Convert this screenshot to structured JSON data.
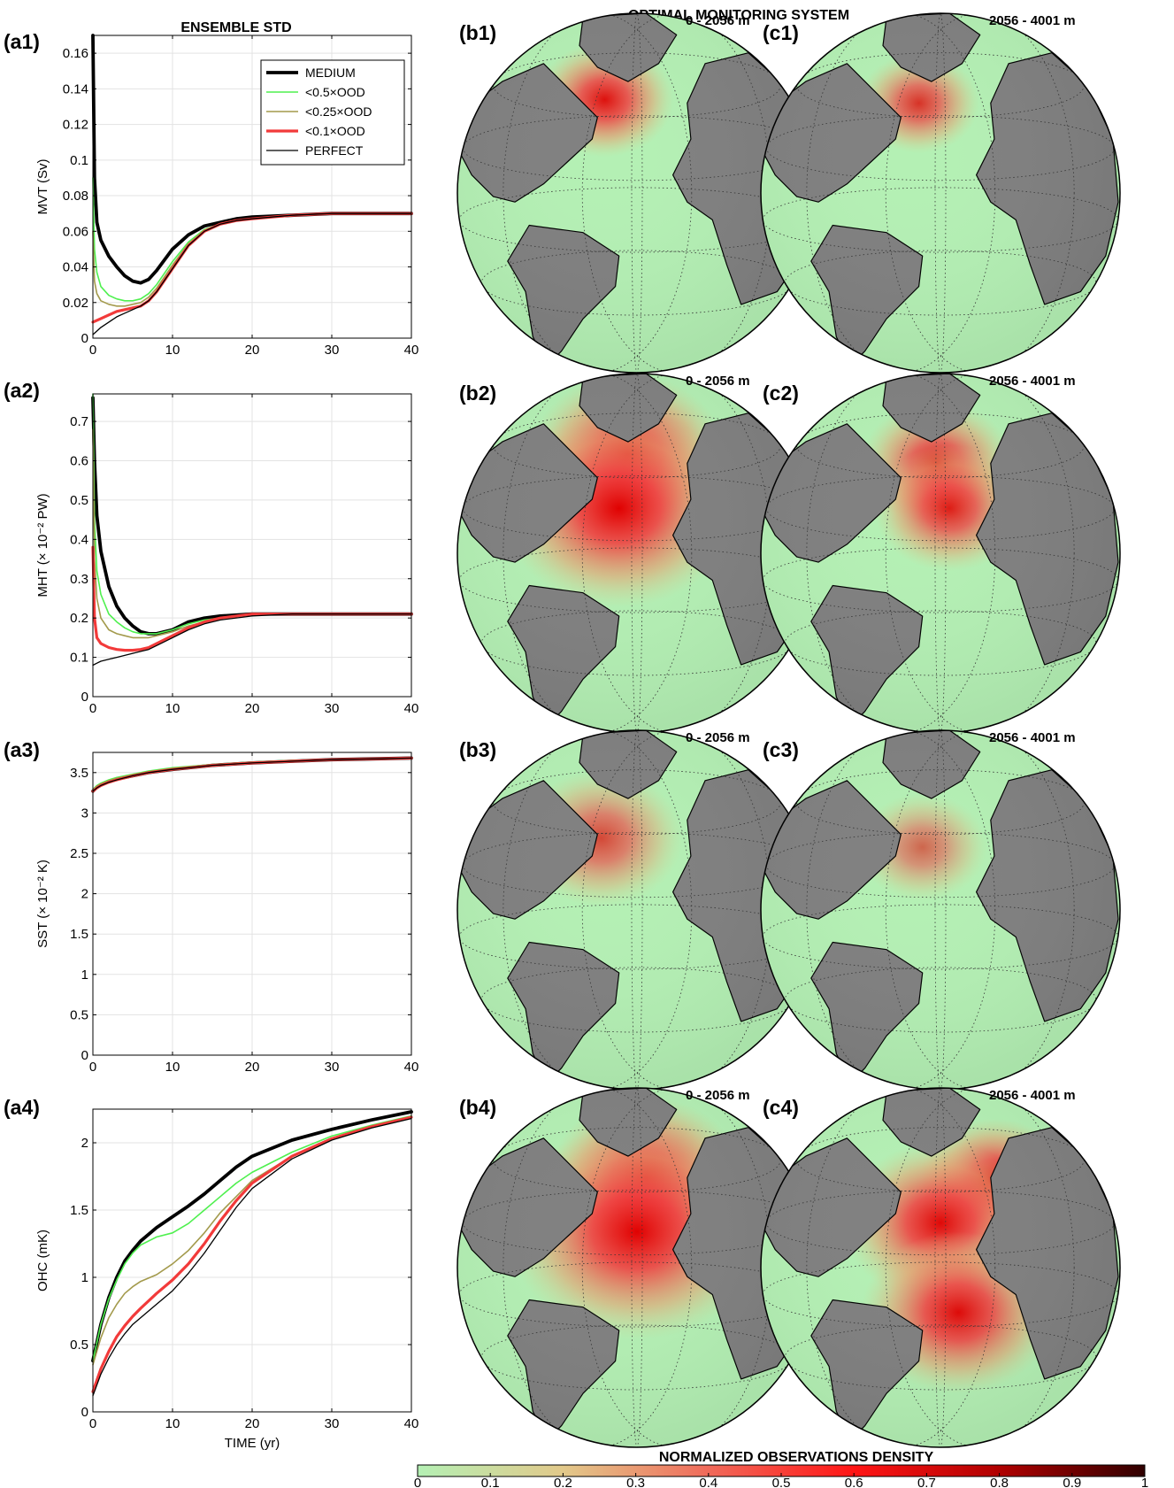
{
  "figure": {
    "left_title": "ENSEMBLE STD",
    "right_title": "OPTIMAL MONITORING SYSTEM",
    "colorbar_title": "NORMALIZED OBSERVATIONS DENSITY",
    "colorbar_ticks": [
      "0",
      "0.1",
      "0.2",
      "0.3",
      "0.4",
      "0.5",
      "0.6",
      "0.7",
      "0.8",
      "0.9",
      "1"
    ],
    "colors": {
      "medium": "#000000",
      "half_ood": "#4ff04f",
      "quarter_ood": "#a39a4c",
      "tenth_ood": "#f23a3a",
      "perfect": "#000000",
      "ocean_low": "#b4f0b4",
      "land": "#808080",
      "ice": "#ffffff"
    }
  },
  "maps": [
    {
      "label": "(b1)",
      "depth": "0 - 2056 m",
      "icon": "globe-icon",
      "intensity": 0.9
    },
    {
      "label": "(c1)",
      "depth": "2056 - 4001 m",
      "icon": "globe-icon",
      "intensity": 0.7
    },
    {
      "label": "(b2)",
      "depth": "0 - 2056 m",
      "icon": "globe-icon",
      "intensity": 1.0
    },
    {
      "label": "(c2)",
      "depth": "2056 - 4001 m",
      "icon": "globe-icon",
      "intensity": 0.8
    },
    {
      "label": "(b3)",
      "depth": "0 - 2056 m",
      "icon": "globe-icon",
      "intensity": 0.55
    },
    {
      "label": "(c3)",
      "depth": "2056 - 4001 m",
      "icon": "globe-icon",
      "intensity": 0.35
    },
    {
      "label": "(b4)",
      "depth": "0 - 2056 m",
      "icon": "globe-icon",
      "intensity": 1.0
    },
    {
      "label": "(c4)",
      "depth": "2056 - 4001 m",
      "icon": "globe-icon",
      "intensity": 0.95
    }
  ],
  "chart_data": [
    {
      "type": "line",
      "label": "(a1)",
      "ylabel": "MVT (Sv)",
      "xlabel": "",
      "xlim": [
        0,
        40
      ],
      "ylim": [
        0,
        0.17
      ],
      "yticks": [
        0,
        0.02,
        0.04,
        0.06,
        0.08,
        0.1,
        0.12,
        0.14,
        0.16
      ],
      "ytick_labels": [
        "0",
        "0.02",
        "0.04",
        "0.06",
        "0.08",
        "0.1",
        "0.12",
        "0.14",
        "0.16"
      ],
      "xticks": [
        0,
        10,
        20,
        30,
        40
      ],
      "xtick_labels": [
        "0",
        "10",
        "20",
        "30",
        "40"
      ],
      "grid": true,
      "legend_position": "top-right",
      "series": [
        {
          "name": "MEDIUM",
          "style": "thick-black",
          "x": [
            0,
            0.2,
            0.5,
            1,
            2,
            3,
            4,
            5,
            6,
            7,
            8,
            10,
            12,
            14,
            16,
            18,
            20,
            25,
            30,
            35,
            40
          ],
          "y": [
            0.17,
            0.09,
            0.065,
            0.055,
            0.046,
            0.04,
            0.035,
            0.032,
            0.031,
            0.033,
            0.038,
            0.05,
            0.058,
            0.063,
            0.065,
            0.067,
            0.068,
            0.069,
            0.07,
            0.07,
            0.07
          ]
        },
        {
          "name": "<0.5×OOD",
          "style": "green",
          "x": [
            0,
            0.2,
            0.5,
            1,
            2,
            3,
            4,
            5,
            6,
            7,
            8,
            10,
            12,
            14,
            16,
            18,
            20,
            25,
            30,
            35,
            40
          ],
          "y": [
            0.09,
            0.05,
            0.037,
            0.029,
            0.024,
            0.022,
            0.021,
            0.021,
            0.022,
            0.025,
            0.03,
            0.043,
            0.054,
            0.061,
            0.064,
            0.066,
            0.067,
            0.069,
            0.07,
            0.07,
            0.07
          ]
        },
        {
          "name": "<0.25×OOD",
          "style": "olive",
          "x": [
            0,
            0.2,
            0.5,
            1,
            2,
            3,
            4,
            5,
            6,
            7,
            8,
            10,
            12,
            14,
            16,
            18,
            20,
            25,
            30,
            35,
            40
          ],
          "y": [
            0.06,
            0.032,
            0.025,
            0.021,
            0.019,
            0.018,
            0.018,
            0.019,
            0.02,
            0.023,
            0.028,
            0.041,
            0.053,
            0.06,
            0.064,
            0.066,
            0.067,
            0.069,
            0.07,
            0.07,
            0.07
          ]
        },
        {
          "name": "<0.1×OOD",
          "style": "red",
          "x": [
            0,
            0.5,
            1,
            2,
            3,
            4,
            5,
            6,
            7,
            8,
            10,
            12,
            14,
            16,
            18,
            20,
            25,
            30,
            35,
            40
          ],
          "y": [
            0.009,
            0.01,
            0.011,
            0.013,
            0.015,
            0.016,
            0.017,
            0.018,
            0.021,
            0.026,
            0.039,
            0.052,
            0.06,
            0.064,
            0.066,
            0.067,
            0.069,
            0.07,
            0.07,
            0.07
          ]
        },
        {
          "name": "PERFECT",
          "style": "thin-black",
          "x": [
            0,
            0.5,
            1,
            2,
            3,
            4,
            5,
            6,
            7,
            8,
            10,
            12,
            14,
            16,
            18,
            20,
            25,
            30,
            35,
            40
          ],
          "y": [
            0.002,
            0.004,
            0.006,
            0.009,
            0.012,
            0.014,
            0.016,
            0.018,
            0.021,
            0.026,
            0.039,
            0.052,
            0.06,
            0.064,
            0.066,
            0.067,
            0.069,
            0.07,
            0.07,
            0.07
          ]
        }
      ]
    },
    {
      "type": "line",
      "label": "(a2)",
      "ylabel": "MHT (× 10⁻² PW)",
      "xlabel": "",
      "xlim": [
        0,
        40
      ],
      "ylim": [
        0,
        0.77
      ],
      "yticks": [
        0,
        0.1,
        0.2,
        0.3,
        0.4,
        0.5,
        0.6,
        0.7
      ],
      "ytick_labels": [
        "0",
        "0.1",
        "0.2",
        "0.3",
        "0.4",
        "0.5",
        "0.6",
        "0.7"
      ],
      "xticks": [
        0,
        10,
        20,
        30,
        40
      ],
      "xtick_labels": [
        "0",
        "10",
        "20",
        "30",
        "40"
      ],
      "grid": true,
      "series": [
        {
          "name": "MEDIUM",
          "style": "thick-black",
          "x": [
            0,
            0.2,
            0.5,
            1,
            2,
            3,
            4,
            5,
            6,
            7,
            8,
            10,
            12,
            14,
            16,
            20,
            25,
            30,
            40
          ],
          "y": [
            0.76,
            0.6,
            0.46,
            0.37,
            0.28,
            0.23,
            0.2,
            0.18,
            0.165,
            0.16,
            0.16,
            0.17,
            0.19,
            0.2,
            0.205,
            0.21,
            0.21,
            0.21,
            0.21
          ]
        },
        {
          "name": "<0.5×OOD",
          "style": "green",
          "x": [
            0,
            0.2,
            0.5,
            1,
            2,
            3,
            4,
            5,
            6,
            7,
            8,
            10,
            12,
            14,
            16,
            20,
            25,
            30,
            40
          ],
          "y": [
            0.77,
            0.45,
            0.32,
            0.26,
            0.21,
            0.19,
            0.175,
            0.165,
            0.16,
            0.16,
            0.16,
            0.17,
            0.185,
            0.195,
            0.2,
            0.21,
            0.21,
            0.21,
            0.21
          ]
        },
        {
          "name": "<0.25×OOD",
          "style": "olive",
          "x": [
            0,
            0.2,
            0.5,
            1,
            2,
            3,
            4,
            5,
            6,
            7,
            8,
            10,
            12,
            14,
            16,
            20,
            25,
            30,
            40
          ],
          "y": [
            0.68,
            0.35,
            0.25,
            0.2,
            0.17,
            0.16,
            0.155,
            0.15,
            0.15,
            0.15,
            0.155,
            0.165,
            0.18,
            0.19,
            0.2,
            0.21,
            0.21,
            0.21,
            0.21
          ]
        },
        {
          "name": "<0.1×OOD",
          "style": "red",
          "x": [
            0,
            0.2,
            0.5,
            1,
            2,
            3,
            4,
            5,
            6,
            7,
            8,
            10,
            12,
            14,
            16,
            20,
            25,
            30,
            40
          ],
          "y": [
            0.38,
            0.2,
            0.15,
            0.135,
            0.125,
            0.12,
            0.118,
            0.118,
            0.12,
            0.125,
            0.135,
            0.155,
            0.175,
            0.19,
            0.2,
            0.21,
            0.21,
            0.21,
            0.21
          ]
        },
        {
          "name": "PERFECT",
          "style": "thin-black",
          "x": [
            0,
            0.5,
            1,
            2,
            3,
            4,
            5,
            6,
            7,
            8,
            10,
            12,
            14,
            16,
            20,
            25,
            30,
            40
          ],
          "y": [
            0.08,
            0.085,
            0.09,
            0.095,
            0.1,
            0.105,
            0.11,
            0.115,
            0.12,
            0.13,
            0.15,
            0.17,
            0.185,
            0.195,
            0.205,
            0.21,
            0.21,
            0.21
          ]
        }
      ]
    },
    {
      "type": "line",
      "label": "(a3)",
      "ylabel": "SST (× 10⁻² K)",
      "xlabel": "",
      "xlim": [
        0,
        40
      ],
      "ylim": [
        0,
        3.75
      ],
      "yticks": [
        0,
        0.5,
        1,
        1.5,
        2,
        2.5,
        3,
        3.5
      ],
      "ytick_labels": [
        "0",
        "0.5",
        "1",
        "1.5",
        "2",
        "2.5",
        "3",
        "3.5"
      ],
      "xticks": [
        0,
        10,
        20,
        30,
        40
      ],
      "xtick_labels": [
        "0",
        "10",
        "20",
        "30",
        "40"
      ],
      "grid": true,
      "series": [
        {
          "name": "MEDIUM",
          "style": "thick-black",
          "x": [
            0,
            0.5,
            1,
            2,
            3,
            5,
            7,
            10,
            15,
            20,
            25,
            30,
            35,
            40
          ],
          "y": [
            3.27,
            3.32,
            3.35,
            3.39,
            3.42,
            3.46,
            3.5,
            3.54,
            3.59,
            3.62,
            3.64,
            3.66,
            3.67,
            3.68
          ]
        },
        {
          "name": "<0.5×OOD",
          "style": "green",
          "x": [
            0,
            0.5,
            1,
            2,
            3,
            5,
            7,
            10,
            15,
            20,
            25,
            30,
            35,
            40
          ],
          "y": [
            3.29,
            3.34,
            3.37,
            3.41,
            3.44,
            3.48,
            3.52,
            3.56,
            3.6,
            3.63,
            3.65,
            3.66,
            3.67,
            3.68
          ]
        },
        {
          "name": "<0.25×OOD",
          "style": "olive",
          "x": [
            0,
            0.5,
            1,
            2,
            3,
            5,
            7,
            10,
            15,
            20,
            25,
            30,
            35,
            40
          ],
          "y": [
            3.28,
            3.33,
            3.36,
            3.4,
            3.43,
            3.47,
            3.51,
            3.55,
            3.59,
            3.62,
            3.64,
            3.66,
            3.67,
            3.68
          ]
        },
        {
          "name": "<0.1×OOD",
          "style": "red",
          "x": [
            0,
            0.5,
            1,
            2,
            3,
            5,
            7,
            10,
            15,
            20,
            25,
            30,
            35,
            40
          ],
          "y": [
            3.27,
            3.31,
            3.34,
            3.38,
            3.41,
            3.46,
            3.5,
            3.54,
            3.59,
            3.62,
            3.64,
            3.66,
            3.67,
            3.68
          ]
        },
        {
          "name": "PERFECT",
          "style": "thin-black",
          "x": [
            0,
            0.5,
            1,
            2,
            3,
            5,
            7,
            10,
            15,
            20,
            25,
            30,
            35,
            40
          ],
          "y": [
            3.27,
            3.31,
            3.34,
            3.38,
            3.41,
            3.46,
            3.5,
            3.54,
            3.59,
            3.62,
            3.64,
            3.66,
            3.67,
            3.68
          ]
        }
      ]
    },
    {
      "type": "line",
      "label": "(a4)",
      "ylabel": "OHC (mK)",
      "xlabel": "TIME (yr)",
      "xlim": [
        0,
        40
      ],
      "ylim": [
        0,
        2.25
      ],
      "yticks": [
        0,
        0.5,
        1,
        1.5,
        2
      ],
      "ytick_labels": [
        "0",
        "0.5",
        "1",
        "1.5",
        "2"
      ],
      "xticks": [
        0,
        10,
        20,
        30,
        40
      ],
      "xtick_labels": [
        "0",
        "10",
        "20",
        "30",
        "40"
      ],
      "grid": true,
      "series": [
        {
          "name": "MEDIUM",
          "style": "thick-black",
          "x": [
            0,
            1,
            2,
            3,
            4,
            5,
            6,
            8,
            10,
            12,
            14,
            16,
            18,
            20,
            25,
            30,
            35,
            40
          ],
          "y": [
            0.38,
            0.65,
            0.85,
            1.0,
            1.12,
            1.2,
            1.27,
            1.37,
            1.45,
            1.53,
            1.62,
            1.72,
            1.82,
            1.9,
            2.02,
            2.1,
            2.17,
            2.23
          ]
        },
        {
          "name": "<0.5×OOD",
          "style": "green",
          "x": [
            0,
            1,
            2,
            3,
            4,
            5,
            6,
            8,
            10,
            12,
            14,
            16,
            18,
            20,
            25,
            30,
            35,
            40
          ],
          "y": [
            0.38,
            0.65,
            0.84,
            0.98,
            1.1,
            1.18,
            1.24,
            1.3,
            1.33,
            1.4,
            1.5,
            1.6,
            1.7,
            1.78,
            1.93,
            2.05,
            2.13,
            2.2
          ]
        },
        {
          "name": "<0.25×OOD",
          "style": "olive",
          "x": [
            0,
            1,
            2,
            3,
            4,
            5,
            6,
            8,
            10,
            12,
            14,
            16,
            18,
            20,
            25,
            30,
            35,
            40
          ],
          "y": [
            0.35,
            0.55,
            0.7,
            0.8,
            0.88,
            0.93,
            0.97,
            1.02,
            1.1,
            1.2,
            1.33,
            1.48,
            1.6,
            1.72,
            1.9,
            2.03,
            2.12,
            2.19
          ]
        },
        {
          "name": "<0.1×OOD",
          "style": "red",
          "x": [
            0,
            1,
            2,
            3,
            4,
            5,
            6,
            8,
            10,
            12,
            14,
            16,
            18,
            20,
            25,
            30,
            35,
            40
          ],
          "y": [
            0.15,
            0.32,
            0.45,
            0.56,
            0.64,
            0.71,
            0.77,
            0.88,
            0.98,
            1.1,
            1.25,
            1.42,
            1.57,
            1.7,
            1.9,
            2.03,
            2.12,
            2.19
          ]
        },
        {
          "name": "PERFECT",
          "style": "thin-black",
          "x": [
            0,
            1,
            2,
            3,
            4,
            5,
            6,
            8,
            10,
            12,
            14,
            16,
            18,
            20,
            25,
            30,
            35,
            40
          ],
          "y": [
            0.12,
            0.28,
            0.4,
            0.5,
            0.58,
            0.65,
            0.7,
            0.8,
            0.9,
            1.03,
            1.18,
            1.35,
            1.52,
            1.66,
            1.88,
            2.02,
            2.11,
            2.18
          ]
        }
      ]
    }
  ]
}
